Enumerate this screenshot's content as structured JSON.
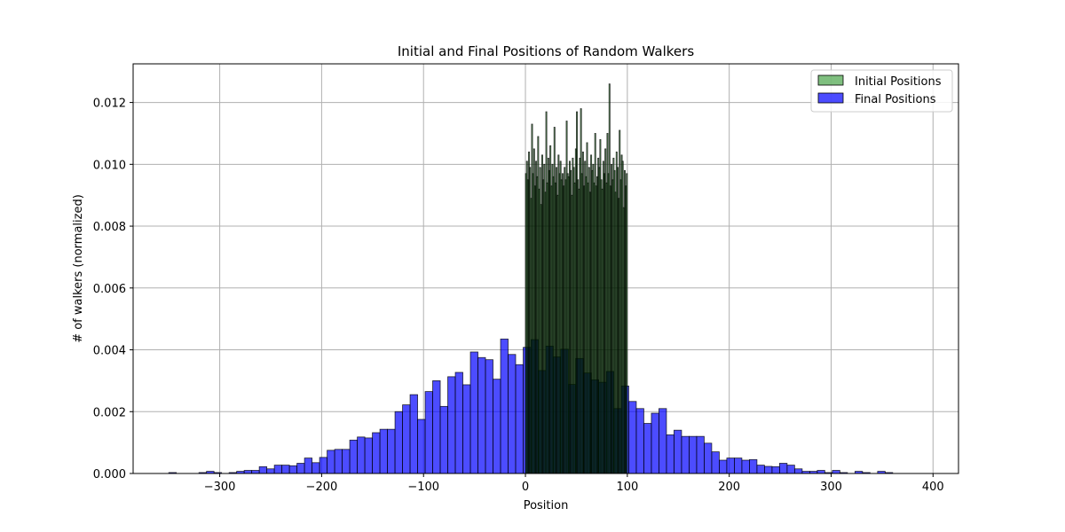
{
  "chart_data": {
    "type": "bar",
    "title": "Initial and Final Positions of Random Walkers",
    "xlabel": "Position",
    "ylabel": "# of walkers (normalized)",
    "xlim": [
      -385,
      425
    ],
    "ylim": [
      0,
      0.01325
    ],
    "xticks": [
      -300,
      -200,
      -100,
      0,
      100,
      200,
      300,
      400
    ],
    "xtick_labels": [
      "−300",
      "−200",
      "−100",
      "0",
      "100",
      "200",
      "300",
      "400"
    ],
    "yticks": [
      0,
      0.002,
      0.004,
      0.006,
      0.008,
      0.01,
      0.012
    ],
    "ytick_labels": [
      "0.000",
      "0.002",
      "0.004",
      "0.006",
      "0.008",
      "0.010",
      "0.012"
    ],
    "grid": true,
    "legend_position": "top-right",
    "series": [
      {
        "name": "Initial Positions",
        "color": "#008000",
        "alpha": 0.5,
        "bin_start": 0,
        "bin_width": 1,
        "values": [
          0.0097,
          0.0101,
          0.0095,
          0.0104,
          0.0099,
          0.0089,
          0.0113,
          0.0097,
          0.0105,
          0.0093,
          0.0101,
          0.0096,
          0.0109,
          0.0092,
          0.0099,
          0.0087,
          0.0103,
          0.0095,
          0.01,
          0.0091,
          0.0117,
          0.0094,
          0.0102,
          0.0098,
          0.0106,
          0.0093,
          0.01,
          0.0096,
          0.0112,
          0.0094,
          0.0099,
          0.009,
          0.0103,
          0.0097,
          0.0101,
          0.0095,
          0.0097,
          0.0093,
          0.0099,
          0.0095,
          0.0114,
          0.0097,
          0.0096,
          0.0101,
          0.0098,
          0.009,
          0.0102,
          0.0099,
          0.0094,
          0.0105,
          0.0117,
          0.0095,
          0.0092,
          0.0102,
          0.0118,
          0.0097,
          0.0104,
          0.0093,
          0.0101,
          0.0096,
          0.0107,
          0.0094,
          0.0099,
          0.0091,
          0.0103,
          0.0098,
          0.01,
          0.0094,
          0.011,
          0.0093,
          0.0096,
          0.0102,
          0.0099,
          0.0108,
          0.0095,
          0.0092,
          0.0101,
          0.0097,
          0.0105,
          0.0094,
          0.011,
          0.0097,
          0.0126,
          0.0093,
          0.01,
          0.0095,
          0.0102,
          0.0098,
          0.0091,
          0.0104,
          0.0099,
          0.0089,
          0.0111,
          0.0095,
          0.0103,
          0.0101,
          0.0086,
          0.0098,
          0.0093,
          0.0097
        ]
      },
      {
        "name": "Final Positions",
        "color": "#0000ff",
        "alpha": 0.7,
        "bin_start": -350,
        "bin_width": 7.4,
        "values": [
          3e-05,
          0.0,
          0.0,
          0.0,
          3e-05,
          7e-05,
          3e-05,
          0.0,
          3e-05,
          7e-05,
          0.0001,
          0.0001,
          0.00022,
          0.00015,
          0.00027,
          0.00027,
          0.00025,
          0.00033,
          0.0005,
          0.00035,
          0.00052,
          0.00075,
          0.00078,
          0.00078,
          0.00108,
          0.00118,
          0.00115,
          0.00132,
          0.00143,
          0.00143,
          0.002,
          0.00222,
          0.00255,
          0.00175,
          0.00265,
          0.003,
          0.00217,
          0.00313,
          0.00327,
          0.00287,
          0.00393,
          0.00375,
          0.00368,
          0.00305,
          0.00435,
          0.00385,
          0.00352,
          0.00408,
          0.00433,
          0.00333,
          0.00412,
          0.00377,
          0.00402,
          0.00288,
          0.00372,
          0.00325,
          0.00303,
          0.00295,
          0.0033,
          0.0021,
          0.00283,
          0.00233,
          0.0021,
          0.00162,
          0.00195,
          0.0021,
          0.00125,
          0.0014,
          0.0012,
          0.0012,
          0.0012,
          0.00098,
          0.0007,
          0.00043,
          0.0005,
          0.0005,
          0.00043,
          0.00045,
          0.00027,
          0.00023,
          0.00022,
          0.00033,
          0.00027,
          0.00015,
          7e-05,
          7e-05,
          0.0001,
          3e-05,
          0.0001,
          3e-05,
          0.0,
          7e-05,
          3e-05,
          0.0,
          7e-05,
          3e-05
        ]
      }
    ]
  }
}
